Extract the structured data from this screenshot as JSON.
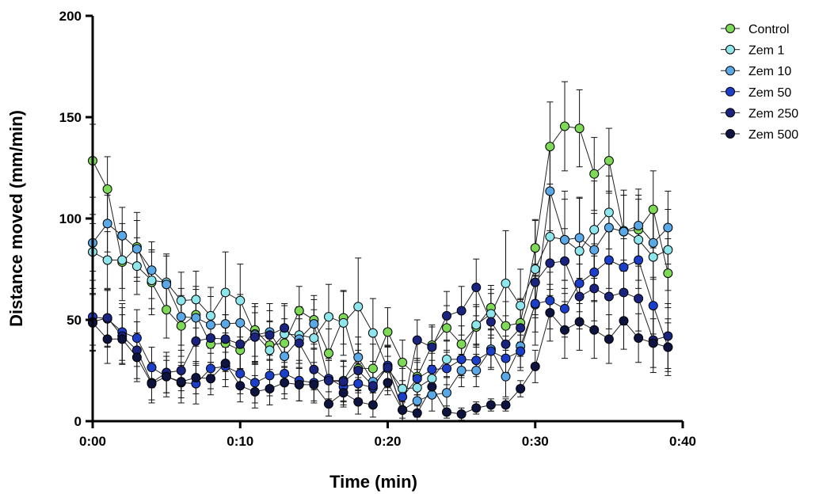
{
  "chart_data": {
    "type": "line",
    "title": "",
    "xlabel": "Time (min)",
    "ylabel": "Distance moved (mm/min)",
    "xlim": [
      0,
      40
    ],
    "ylim": [
      0,
      200
    ],
    "x_ticks": [
      0,
      10,
      20,
      30,
      40
    ],
    "x_tick_labels": [
      "0:00",
      "0:10",
      "0:20",
      "0:30",
      "0:40"
    ],
    "y_ticks": [
      0,
      50,
      100,
      150,
      200
    ],
    "y_tick_labels": [
      "0",
      "50",
      "100",
      "150",
      "200"
    ],
    "legend_position": "top-right",
    "grid": false,
    "x": [
      0,
      1,
      2,
      3,
      4,
      5,
      6,
      7,
      8,
      9,
      10,
      11,
      12,
      13,
      14,
      15,
      16,
      17,
      18,
      19,
      20,
      21,
      22,
      23,
      24,
      25,
      26,
      27,
      28,
      29,
      30,
      31,
      32,
      33,
      34,
      35,
      36,
      37,
      38,
      39
    ],
    "series": [
      {
        "name": "Control",
        "color": "#7ed957",
        "values": [
          128.5,
          114.5,
          78.5,
          86,
          68.5,
          55,
          47,
          52.5,
          38,
          38.5,
          35,
          45,
          37.5,
          38.5,
          54.5,
          50,
          33.5,
          51,
          26,
          26,
          44,
          29,
          22,
          37.5,
          46,
          38,
          46.5,
          56,
          47,
          48.5,
          85.5,
          135.5,
          145.5,
          144.5,
          122,
          128.5,
          93.5,
          94.5,
          104.5,
          73
        ],
        "errors": [
          18,
          16,
          19,
          17,
          16,
          14,
          15,
          14,
          15,
          14,
          13,
          13,
          12,
          12,
          12,
          12,
          12,
          13,
          12,
          12,
          12,
          11,
          9,
          10,
          11,
          9,
          10,
          11,
          12,
          12,
          14,
          22,
          22,
          19,
          18,
          16,
          18,
          17,
          19,
          17
        ]
      },
      {
        "name": "Zem 1",
        "color": "#8ee6ec",
        "values": [
          83.5,
          79.5,
          79.5,
          76.5,
          69.5,
          68.5,
          59.5,
          60,
          52,
          63.5,
          59.5,
          43,
          35,
          43,
          42.5,
          41,
          51.5,
          48.5,
          56.5,
          43.5,
          26,
          16,
          16.5,
          21,
          30.5,
          30.5,
          47.5,
          53,
          68,
          57,
          75,
          91,
          89.5,
          84,
          94.5,
          103,
          94,
          89.5,
          81,
          84.5
        ],
        "errors": [
          14,
          14,
          14,
          14,
          14,
          14,
          14,
          14,
          14,
          20,
          18,
          15,
          14,
          14,
          14,
          14,
          16,
          16,
          24,
          17,
          11,
          10,
          9,
          9,
          9,
          9,
          10,
          12,
          26,
          18,
          24,
          26,
          24,
          26,
          24,
          18,
          20,
          20,
          24,
          20
        ]
      },
      {
        "name": "Zem 10",
        "color": "#5aa9e6",
        "values": [
          88,
          97.5,
          91.5,
          85,
          74.5,
          67.5,
          51.5,
          51,
          47.5,
          48,
          48.5,
          42.5,
          44,
          32,
          40.5,
          48,
          20,
          20,
          31.5,
          19.5,
          27,
          5.5,
          10,
          13,
          14,
          25,
          25,
          35.5,
          22,
          37,
          57.5,
          113.5,
          89.5,
          90.5,
          84.5,
          95.5,
          93.5,
          96.5,
          88,
          95.5
        ],
        "errors": [
          14,
          14,
          14,
          14,
          14,
          14,
          14,
          14,
          14,
          14,
          14,
          14,
          14,
          12,
          12,
          12,
          10,
          10,
          10,
          10,
          10,
          8,
          8,
          8,
          8,
          8,
          8,
          10,
          10,
          12,
          20,
          22,
          20,
          20,
          18,
          18,
          18,
          18,
          18,
          18
        ]
      },
      {
        "name": "Zem 50",
        "color": "#1c3fc9",
        "values": [
          51.5,
          50.5,
          44,
          41,
          26.5,
          22,
          19,
          18.5,
          26,
          27,
          23.5,
          19,
          22.5,
          23.5,
          20,
          19,
          21,
          17,
          18.5,
          16.5,
          27.5,
          12,
          21,
          25.5,
          26,
          30.5,
          30,
          34.5,
          31,
          34.5,
          58,
          59.5,
          55.5,
          68,
          73.5,
          79.5,
          76,
          79.5,
          57,
          36.5
        ],
        "errors": [
          14,
          14,
          14,
          14,
          10,
          10,
          10,
          10,
          10,
          10,
          10,
          10,
          10,
          10,
          10,
          10,
          10,
          10,
          10,
          10,
          10,
          8,
          8,
          8,
          8,
          8,
          8,
          8,
          8,
          8,
          14,
          14,
          14,
          14,
          14,
          14,
          14,
          14,
          14,
          14
        ]
      },
      {
        "name": "Zem 250",
        "color": "#1a237e",
        "values": [
          49,
          51,
          42,
          35,
          19,
          24,
          25,
          39.5,
          41,
          40.5,
          38,
          41.5,
          42.5,
          46,
          38.5,
          25.5,
          20,
          19.5,
          25,
          17.5,
          26.5,
          5.5,
          40,
          36.5,
          52,
          54.5,
          66,
          49,
          38,
          46,
          68.5,
          78,
          79,
          61.5,
          65.5,
          61.5,
          63.5,
          60.5,
          40,
          42
        ],
        "errors": [
          14,
          14,
          14,
          14,
          10,
          10,
          10,
          12,
          12,
          12,
          12,
          12,
          12,
          12,
          12,
          10,
          10,
          10,
          10,
          10,
          10,
          8,
          10,
          10,
          12,
          12,
          14,
          14,
          14,
          14,
          16,
          16,
          16,
          16,
          16,
          16,
          16,
          16,
          16,
          16
        ]
      },
      {
        "name": "Zem 500",
        "color": "#0d1440",
        "values": [
          48.5,
          40.5,
          40.5,
          31.5,
          18.5,
          22,
          19.5,
          21.5,
          21,
          28.5,
          17.5,
          14.5,
          16,
          19,
          18,
          18,
          8.5,
          14,
          9.5,
          8,
          19,
          5.5,
          4,
          17,
          4.5,
          3.5,
          6.5,
          8,
          8,
          16,
          27,
          53.5,
          45,
          49,
          45,
          40.5,
          49.5,
          41,
          38.5,
          36.5
        ],
        "errors": [
          14,
          12,
          12,
          12,
          8,
          8,
          8,
          8,
          8,
          8,
          8,
          8,
          8,
          8,
          8,
          8,
          6,
          6,
          6,
          6,
          6,
          4,
          4,
          4,
          3,
          3,
          3,
          3,
          3,
          4,
          8,
          14,
          14,
          14,
          14,
          12,
          14,
          12,
          12,
          12
        ]
      }
    ]
  }
}
